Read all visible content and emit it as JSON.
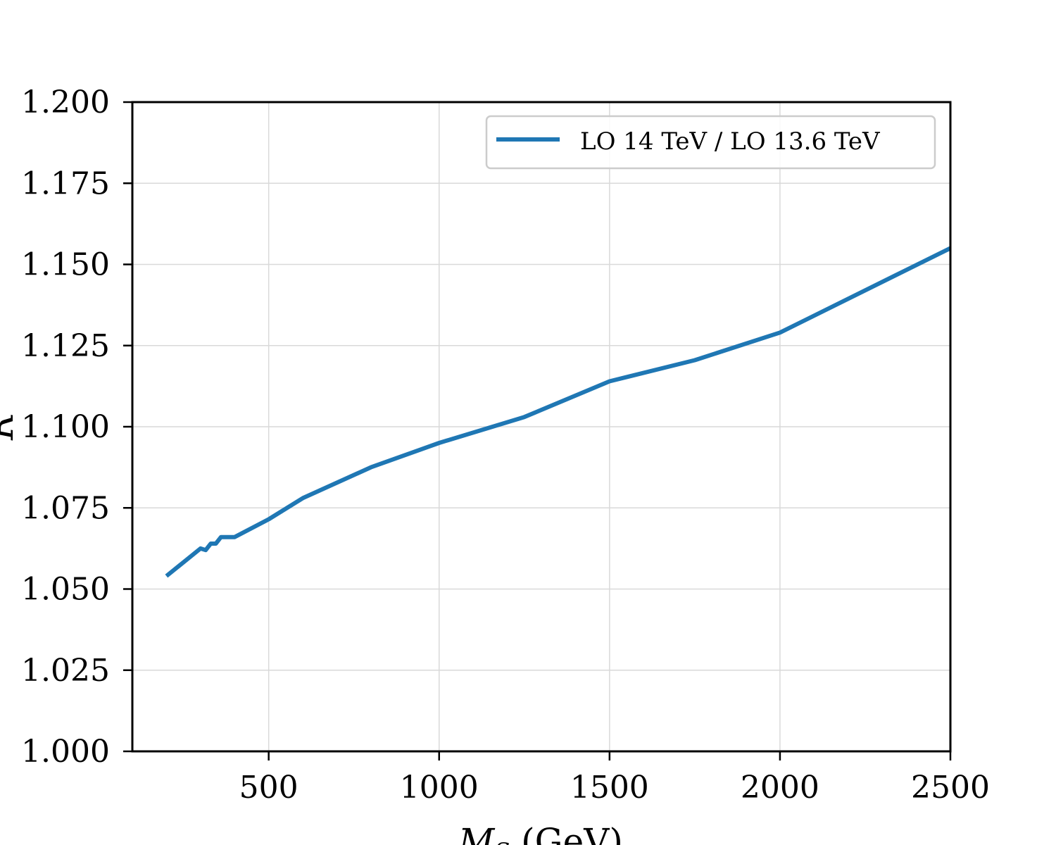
{
  "chart_data": {
    "type": "line",
    "xlabel_main": "M",
    "xlabel_sub": "S",
    "xlabel_unit": " (GeV)",
    "ylabel": "R",
    "xlim": [
      100,
      2500
    ],
    "ylim": [
      1.0,
      1.2
    ],
    "x_ticks": [
      500,
      1000,
      1500,
      2000,
      2500
    ],
    "y_ticks": [
      1.0,
      1.025,
      1.05,
      1.075,
      1.1,
      1.125,
      1.15,
      1.175,
      1.2
    ],
    "x_tick_labels": [
      "500",
      "1000",
      "1500",
      "2000",
      "2500"
    ],
    "y_tick_labels": [
      "1.000",
      "1.025",
      "1.050",
      "1.075",
      "1.100",
      "1.125",
      "1.150",
      "1.175",
      "1.200"
    ],
    "grid": true,
    "legend_position": "top-right",
    "series": [
      {
        "name": "LO 14 TeV / LO 13.6 TeV",
        "color": "#1f77b4",
        "x": [
          200,
          300,
          315,
          330,
          345,
          360,
          375,
          400,
          500,
          600,
          800,
          1000,
          1250,
          1500,
          1750,
          2000,
          2500
        ],
        "y": [
          1.054,
          1.0625,
          1.062,
          1.064,
          1.064,
          1.066,
          1.066,
          1.066,
          1.0715,
          1.078,
          1.0875,
          1.095,
          1.103,
          1.114,
          1.1205,
          1.129,
          1.155
        ]
      }
    ]
  }
}
